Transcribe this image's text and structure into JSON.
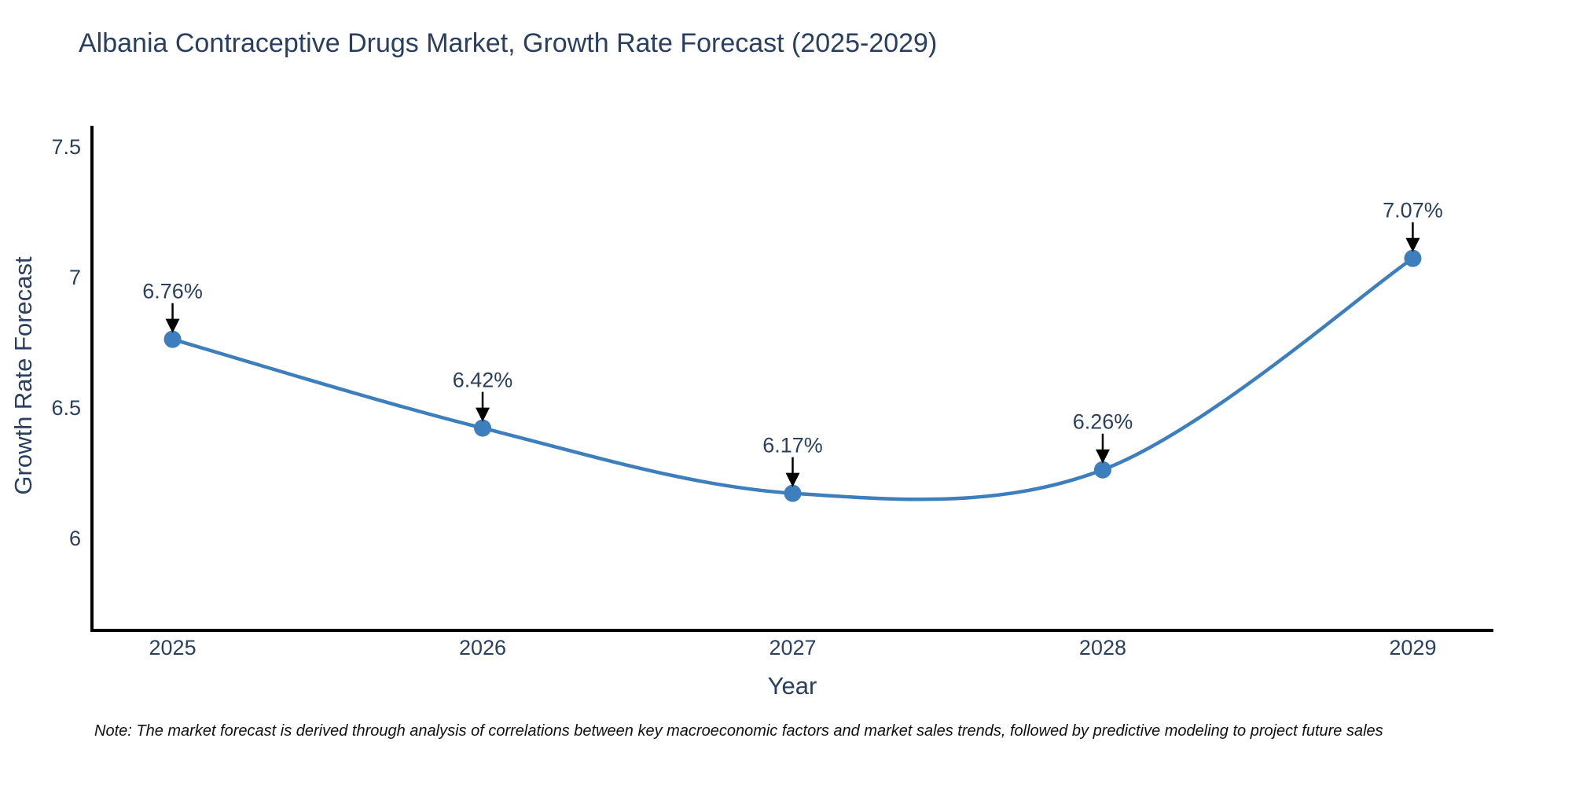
{
  "chart_data": {
    "type": "line",
    "title": "Albania Contraceptive Drugs Market, Growth Rate Forecast (2025-2029)",
    "xlabel": "Year",
    "ylabel": "Growth Rate Forecast",
    "x": [
      2025,
      2026,
      2027,
      2028,
      2029
    ],
    "y": [
      6.76,
      6.42,
      6.17,
      6.26,
      7.07
    ],
    "point_labels": [
      "6.76%",
      "6.42%",
      "6.17%",
      "6.26%",
      "7.07%"
    ],
    "x_tick_labels": [
      "2025",
      "2026",
      "2027",
      "2028",
      "2029"
    ],
    "y_tick_labels": [
      "7.5",
      "7",
      "6.5",
      "6"
    ],
    "y_tick_values": [
      7.5,
      7,
      6.5,
      6
    ],
    "xlim": [
      2024.74,
      2029.26
    ],
    "ylim": [
      5.645,
      7.578
    ],
    "grid": false,
    "legend": "none",
    "line_shape": "spline",
    "marker_style": "circle",
    "annotation_style": "label-above-with-down-arrow",
    "colors": {
      "line": "#3d7ebd",
      "marker": "#3d7ebd",
      "axis_line": "#000000",
      "arrow": "#000000",
      "text": "#2a3f5f",
      "note_text": "#111111",
      "background": "#ffffff"
    }
  },
  "footer": {
    "note": "Note: The market forecast is derived through analysis of correlations between key macroeconomic factors and market sales trends, followed by predictive modeling to project future sales"
  }
}
